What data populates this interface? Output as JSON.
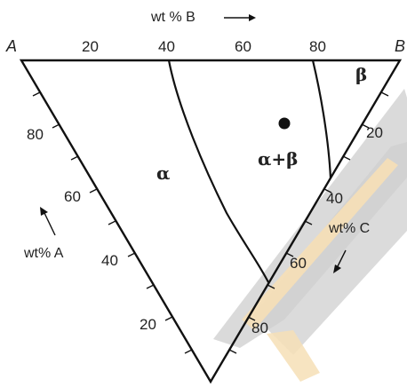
{
  "diagram": {
    "vertices": {
      "a": "A",
      "b": "B"
    },
    "axes": {
      "b": {
        "title": "wt % B",
        "ticks": [
          "20",
          "40",
          "60",
          "80"
        ]
      },
      "a": {
        "title": "wt% A",
        "ticks": [
          "80",
          "60",
          "40",
          "20"
        ]
      },
      "c": {
        "title": "wt% C",
        "ticks": [
          "20",
          "40",
          "60",
          "80"
        ]
      }
    },
    "regions": {
      "alpha": "α",
      "alpha_beta": "α+β",
      "beta": "β"
    },
    "point": {
      "name": "composition-point",
      "color": "#111111"
    },
    "colors": {
      "line": "#111111",
      "shadow": "#d2d2d2",
      "highlight": "#f5dcb0"
    }
  }
}
